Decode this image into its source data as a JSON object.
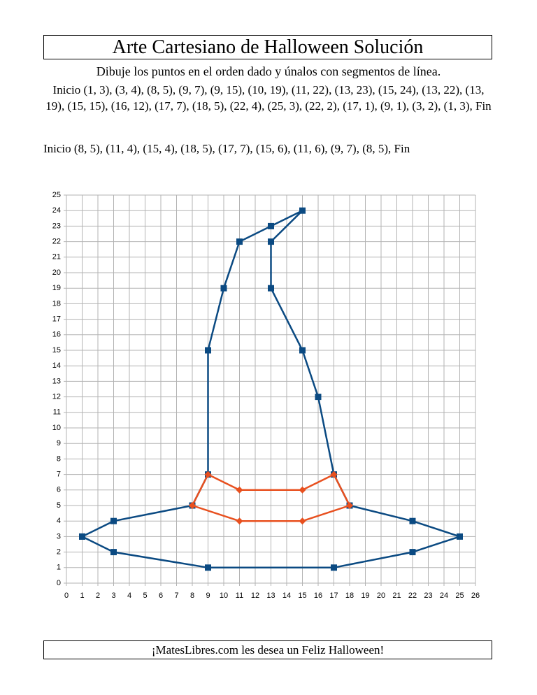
{
  "header": {
    "title": "Arte Cartesiano de Halloween Solución",
    "instructions": "Dibuje los puntos en el orden dado y únalos con segmentos de línea.",
    "list_1": "Inicio  (1, 3), (3, 4), (8, 5), (9, 7), (9, 15), (10, 19), (11, 22), (13, 23), (15, 24), (13, 22), (13, 19), (15, 15), (16, 12), (17, 7), (18, 5), (22, 4), (25, 3), (22, 2), (17, 1), (9, 1), (3, 2), (1, 3),   Fin",
    "list_2": "Inicio  (8, 5), (11, 4), (15, 4), (18, 5), (17, 7), (15, 6), (11, 6), (9, 7), (8, 5),   Fin"
  },
  "chart_data": {
    "type": "scatter",
    "series": [
      {
        "color": "#0b4a82",
        "marker": "square",
        "x": [
          1,
          3,
          8,
          9,
          9,
          10,
          11,
          13,
          15,
          13,
          13,
          15,
          16,
          17,
          18,
          22,
          25,
          22,
          17,
          9,
          3,
          1
        ],
        "values": [
          3,
          4,
          5,
          7,
          15,
          19,
          22,
          23,
          24,
          22,
          19,
          15,
          12,
          7,
          5,
          4,
          3,
          2,
          1,
          1,
          2,
          3
        ]
      },
      {
        "color": "#e8501f",
        "marker": "diamond",
        "x": [
          8,
          11,
          15,
          18,
          17,
          15,
          11,
          9,
          8
        ],
        "values": [
          5,
          4,
          4,
          5,
          7,
          6,
          6,
          7,
          5
        ]
      }
    ],
    "xlim": [
      0,
      26
    ],
    "ylim": [
      0,
      25
    ],
    "xticks": [
      0,
      1,
      2,
      3,
      4,
      5,
      6,
      7,
      8,
      9,
      10,
      11,
      12,
      13,
      14,
      15,
      16,
      17,
      18,
      19,
      20,
      21,
      22,
      23,
      24,
      25,
      26
    ],
    "yticks": [
      0,
      1,
      2,
      3,
      4,
      5,
      6,
      7,
      8,
      9,
      10,
      11,
      12,
      13,
      14,
      15,
      16,
      17,
      18,
      19,
      20,
      21,
      22,
      23,
      24,
      25
    ],
    "grid": true
  },
  "footer": {
    "text": "¡MatesLibres.com les desea un Feliz Halloween!"
  }
}
